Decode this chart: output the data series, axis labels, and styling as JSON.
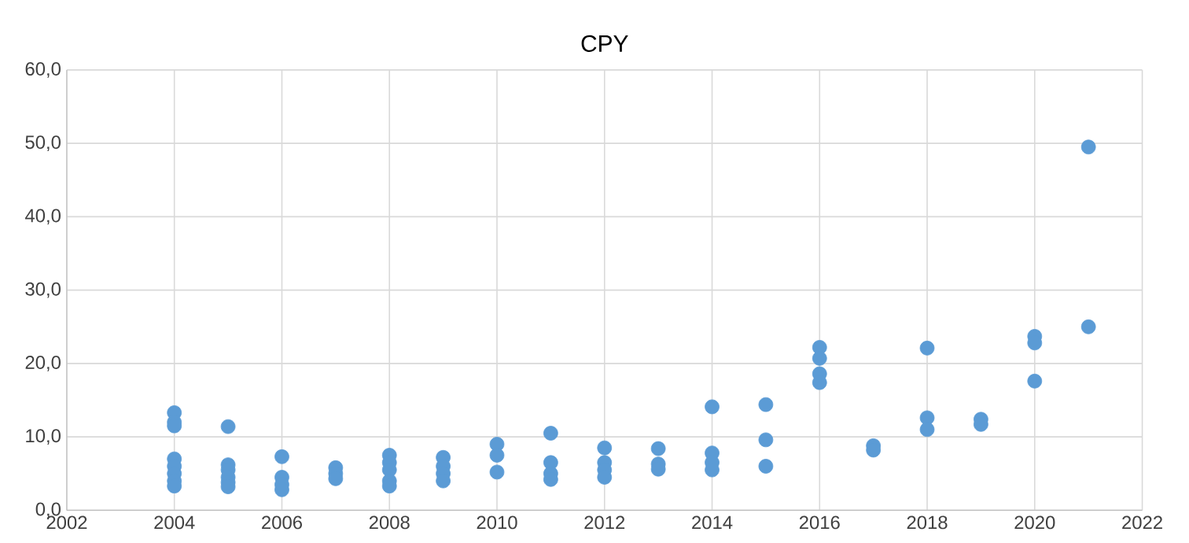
{
  "chart_data": {
    "type": "scatter",
    "title": "CPY",
    "x": [
      2004,
      2004,
      2004,
      2004,
      2004,
      2004,
      2004,
      2004,
      2005,
      2005,
      2005,
      2005,
      2005,
      2005,
      2006,
      2006,
      2006,
      2006,
      2007,
      2007,
      2007,
      2008,
      2008,
      2008,
      2008,
      2008,
      2009,
      2009,
      2009,
      2009,
      2010,
      2010,
      2010,
      2011,
      2011,
      2011,
      2011,
      2012,
      2012,
      2012,
      2012,
      2013,
      2013,
      2013,
      2014,
      2014,
      2014,
      2014,
      2015,
      2015,
      2015,
      2016,
      2016,
      2016,
      2016,
      2017,
      2017,
      2018,
      2018,
      2018,
      2019,
      2019,
      2020,
      2020,
      2020,
      2021,
      2021
    ],
    "values": [
      13.3,
      12.0,
      11.5,
      7.0,
      6.0,
      5.0,
      4.0,
      3.3,
      11.4,
      6.2,
      5.5,
      4.5,
      3.8,
      3.2,
      7.3,
      4.5,
      3.5,
      2.8,
      5.8,
      5.0,
      4.3,
      7.5,
      6.5,
      5.5,
      4.0,
      3.3,
      7.2,
      6.0,
      5.0,
      4.0,
      9.0,
      7.5,
      5.2,
      10.5,
      6.5,
      5.0,
      4.2,
      8.5,
      6.5,
      5.5,
      4.5,
      8.4,
      6.3,
      5.6,
      14.1,
      7.8,
      6.5,
      5.5,
      14.4,
      9.6,
      6.0,
      22.2,
      20.7,
      18.6,
      17.4,
      8.8,
      8.2,
      22.1,
      12.6,
      11.0,
      12.4,
      11.7,
      23.7,
      22.8,
      17.6,
      49.5,
      25.0
    ],
    "color": "#5b9bd5",
    "grid": true,
    "xlim": [
      2002,
      2022
    ],
    "xticks": [
      2002,
      2004,
      2006,
      2008,
      2010,
      2012,
      2014,
      2016,
      2018,
      2020,
      2022
    ],
    "ylim": [
      0,
      60
    ],
    "yticks": [
      {
        "value": 0,
        "label": "0,0"
      },
      {
        "value": 10,
        "label": "10,0"
      },
      {
        "value": 20,
        "label": "20,0"
      },
      {
        "value": 30,
        "label": "30,0"
      },
      {
        "value": 40,
        "label": "40,0"
      },
      {
        "value": 50,
        "label": "50,0"
      },
      {
        "value": 60,
        "label": "60,0"
      }
    ]
  }
}
